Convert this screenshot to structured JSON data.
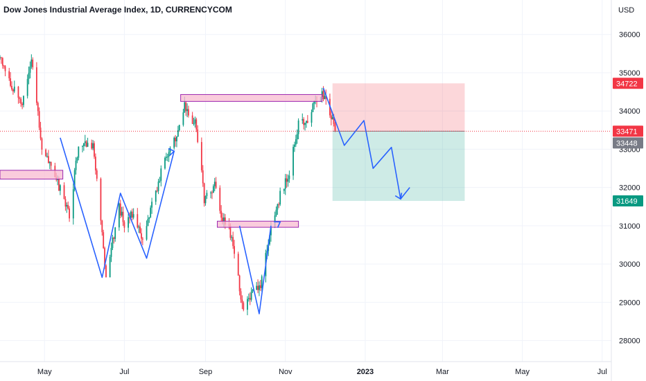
{
  "chart_data": {
    "type": "candlestick",
    "title": "Dow Jones Industrial Average Index, 1D, CURRENCYCOM",
    "currency": "USD",
    "y_ticks": [
      28000,
      29000,
      30000,
      31000,
      32000,
      33000,
      34000,
      35000,
      36000
    ],
    "y_range": [
      27450,
      36900
    ],
    "x_ticks": [
      {
        "label": "May",
        "date": "2022-05-01",
        "bold": false
      },
      {
        "label": "Jul",
        "date": "2022-07-01",
        "bold": false
      },
      {
        "label": "Sep",
        "date": "2022-09-01",
        "bold": false
      },
      {
        "label": "Nov",
        "date": "2022-11-01",
        "bold": false
      },
      {
        "label": "2023",
        "date": "2023-01-01",
        "bold": true
      },
      {
        "label": "Mar",
        "date": "2023-03-01",
        "bold": false
      },
      {
        "label": "May",
        "date": "2023-05-01",
        "bold": false
      },
      {
        "label": "Jul",
        "date": "2023-07-01",
        "bold": false
      }
    ],
    "x_range": [
      "2022-03-28",
      "2023-07-08"
    ],
    "price_badges": [
      {
        "label": "34722",
        "value": 34722,
        "color": "#f23645"
      },
      {
        "label": "33471",
        "value": 33471,
        "color": "#f23645"
      },
      {
        "label": "33448",
        "value": 33448,
        "color": "#787b86"
      },
      {
        "label": "31649",
        "value": 31649,
        "color": "#089981"
      }
    ],
    "current_price_line": 33471,
    "colors": {
      "up": "#089981",
      "down": "#f23645",
      "drawing": "#2962ff",
      "zone_stroke": "#9c27b0",
      "zone_fill": "#f8bbd0"
    },
    "last_candle_date": "2022-12-10",
    "swing_path": [
      [
        "2022-03-28",
        35400
      ],
      [
        "2022-04-04",
        34800
      ],
      [
        "2022-04-14",
        34200
      ],
      [
        "2022-04-21",
        35400
      ],
      [
        "2022-04-29",
        33000
      ],
      [
        "2022-05-09",
        32300
      ],
      [
        "2022-05-20",
        31300
      ],
      [
        "2022-05-27",
        33100
      ],
      [
        "2022-06-07",
        33150
      ],
      [
        "2022-06-17",
        29700
      ],
      [
        "2022-06-27",
        31500
      ],
      [
        "2022-07-01",
        31000
      ],
      [
        "2022-07-08",
        31400
      ],
      [
        "2022-07-14",
        30600
      ],
      [
        "2022-07-25",
        31900
      ],
      [
        "2022-08-01",
        32800
      ],
      [
        "2022-08-10",
        33300
      ],
      [
        "2022-08-16",
        34100
      ],
      [
        "2022-08-25",
        33600
      ],
      [
        "2022-08-31",
        31700
      ],
      [
        "2022-09-09",
        32100
      ],
      [
        "2022-09-13",
        31200
      ],
      [
        "2022-09-19",
        31000
      ],
      [
        "2022-09-30",
        28800
      ],
      [
        "2022-10-07",
        29300
      ],
      [
        "2022-10-13",
        29500
      ],
      [
        "2022-10-21",
        30900
      ],
      [
        "2022-10-28",
        31800
      ],
      [
        "2022-11-04",
        32400
      ],
      [
        "2022-11-11",
        33700
      ],
      [
        "2022-11-18",
        33800
      ],
      [
        "2022-11-25",
        34300
      ],
      [
        "2022-12-01",
        34450
      ],
      [
        "2022-12-10",
        33450
      ]
    ],
    "drawings": {
      "zones": [
        {
          "x1": "2022-03-28",
          "x2": "2022-05-15",
          "y1": 32450,
          "y2": 32220
        },
        {
          "x1": "2022-08-13",
          "x2": "2022-11-29",
          "y1": 34430,
          "y2": 34250
        },
        {
          "x1": "2022-09-10",
          "x2": "2022-11-11",
          "y1": 31120,
          "y2": 30960
        }
      ],
      "pattern_lines": [
        [
          [
            "2022-05-13",
            33300
          ],
          [
            "2022-06-14",
            29650
          ],
          [
            "2022-06-28",
            31850
          ],
          [
            "2022-07-18",
            30150
          ],
          [
            "2022-08-08",
            32950
          ]
        ],
        [
          [
            "2022-09-27",
            31000
          ],
          [
            "2022-10-12",
            28700
          ],
          [
            "2022-10-21",
            31000
          ]
        ],
        [
          [
            "2022-11-30",
            34600
          ],
          [
            "2022-12-16",
            33100
          ],
          [
            "2022-12-31",
            33750
          ],
          [
            "2023-01-07",
            32500
          ],
          [
            "2023-01-21",
            33050
          ],
          [
            "2023-01-28",
            31700
          ],
          [
            "2023-02-04",
            32000
          ]
        ]
      ],
      "arrows": [
        [
          [
            "2022-07-31",
            32900
          ],
          [
            "2022-08-08",
            32950
          ]
        ],
        [
          [
            "2022-10-21",
            30950
          ],
          [
            "2022-10-28",
            31100
          ]
        ],
        [
          [
            "2023-01-26",
            31850
          ],
          [
            "2023-01-28",
            31700
          ]
        ]
      ],
      "position": {
        "x1": "2022-12-07",
        "x2": "2023-03-18",
        "entry": 33471,
        "stop": 34722,
        "target": 31649
      }
    }
  }
}
